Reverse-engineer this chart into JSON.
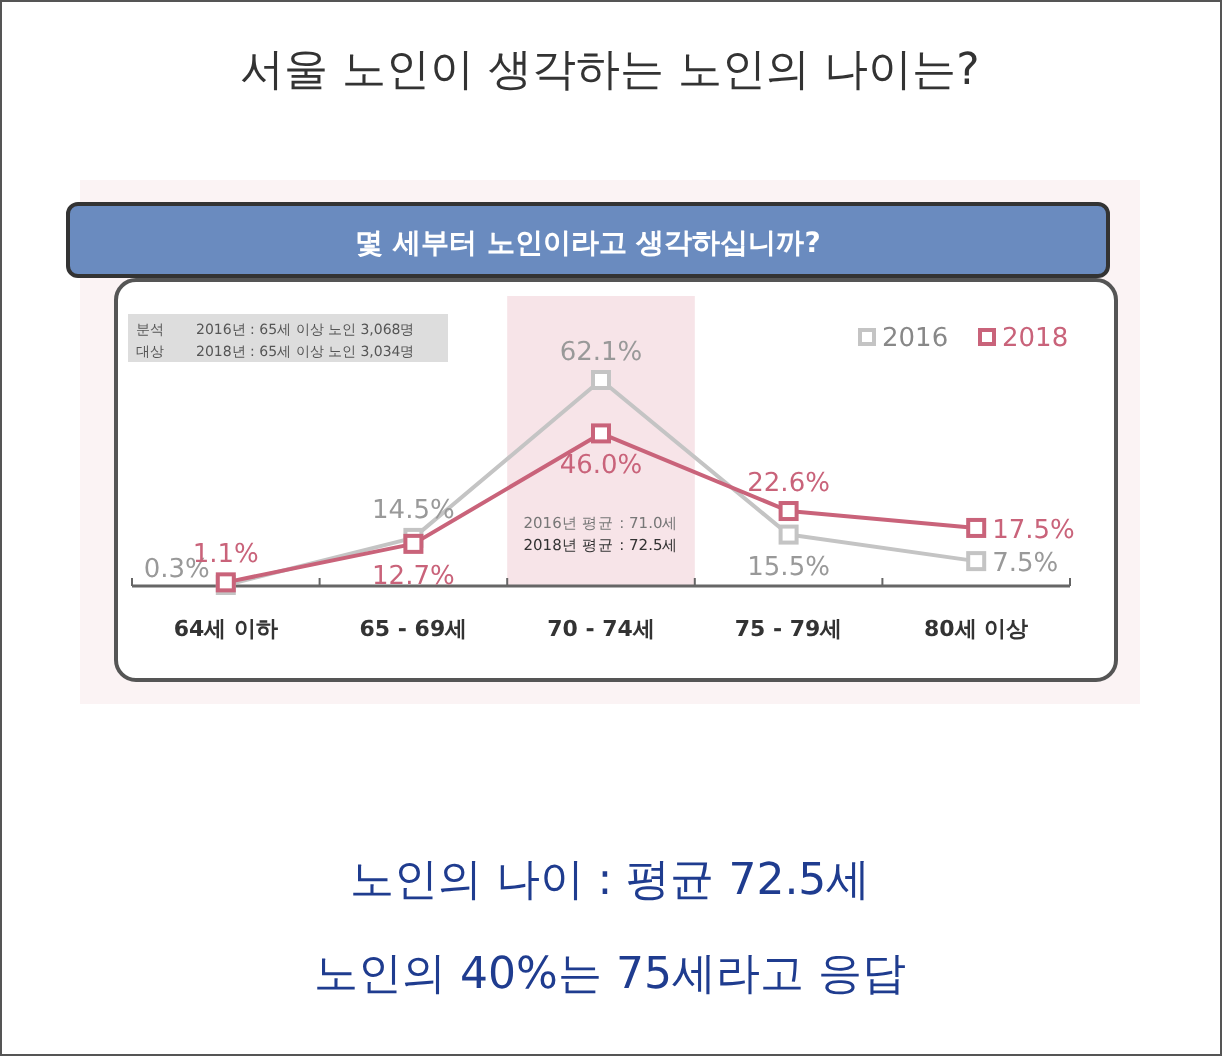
{
  "chart_data": {
    "type": "line",
    "title": "서울 노인이 생각하는 노인의 나이는?",
    "subtitle": "몇 세부터 노인이라고 생각하십니까?",
    "categories": [
      "64세 이하",
      "65 - 69세",
      "70 - 74세",
      "75 - 79세",
      "80세 이상"
    ],
    "series": [
      {
        "name": "2016",
        "color": "#c4c4c4",
        "values": [
          0.3,
          14.5,
          62.1,
          15.5,
          7.5
        ],
        "value_labels": [
          "0.3%",
          "14.5%",
          "62.1%",
          "15.5%",
          "7.5%"
        ]
      },
      {
        "name": "2018",
        "color": "#c9637a",
        "values": [
          1.1,
          12.7,
          46.0,
          22.6,
          17.5
        ],
        "value_labels": [
          "1.1%",
          "12.7%",
          "46.0%",
          "22.6%",
          "17.5%"
        ]
      }
    ],
    "marker": "square",
    "legend": "top right",
    "bands": [
      {
        "axis": "x",
        "from": "70 - 74세",
        "to": "70 - 74세",
        "color": "#f7e4e8"
      }
    ],
    "annotations": [
      "분석",
      "대상",
      "2016년 : 65세 이상 노인 3,068명",
      "2018년 : 65세 이상 노인 3,034명",
      "2016년 평균 : 71.0세",
      "2018년 평균 : 72.5세",
      "노인의 나이 : 평균 72.5세",
      "노인의 40%는 75세라고 응답"
    ]
  }
}
